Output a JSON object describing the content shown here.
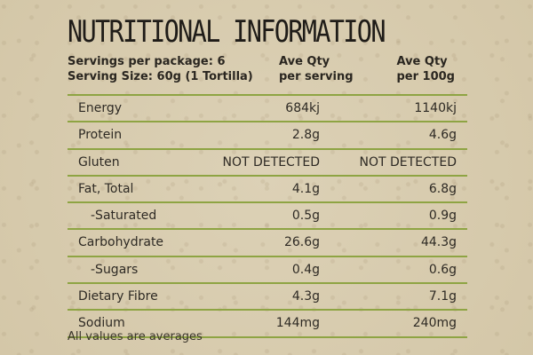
{
  "title": "NUTRITIONAL INFORMATION",
  "header": {
    "servings_per_package": "Servings per package: 6",
    "serving_size": "Serving Size: 60g (1 Tortilla)",
    "col1_line1": "Ave Qty",
    "col1_line2": "per serving",
    "col2_line1": "Ave Qty",
    "col2_line2": "per 100g"
  },
  "rows": [
    {
      "name": "Energy",
      "per_serving": "684kj",
      "per_100g": "1140kj"
    },
    {
      "name": "Protein",
      "per_serving": "2.8g",
      "per_100g": "4.6g"
    },
    {
      "name": "Gluten",
      "per_serving": "NOT DETECTED",
      "per_100g": "NOT DETECTED"
    },
    {
      "name": "Fat, Total",
      "per_serving": "4.1g",
      "per_100g": "6.8g"
    },
    {
      "name": "-Saturated",
      "per_serving": "0.5g",
      "per_100g": "0.9g"
    },
    {
      "name": "Carbohydrate",
      "per_serving": "26.6g",
      "per_100g": "44.3g"
    },
    {
      "name": "-Sugars",
      "per_serving": "0.4g",
      "per_100g": "0.6g"
    },
    {
      "name": "Dietary Fibre",
      "per_serving": "4.3g",
      "per_100g": "7.1g"
    },
    {
      "name": "Sodium",
      "per_serving": "144mg",
      "per_100g": "240mg"
    }
  ],
  "footnote": "All values are averages",
  "colors": {
    "background": "#d9cdb0",
    "rule": "#8ea443",
    "text": "#2a2620"
  }
}
